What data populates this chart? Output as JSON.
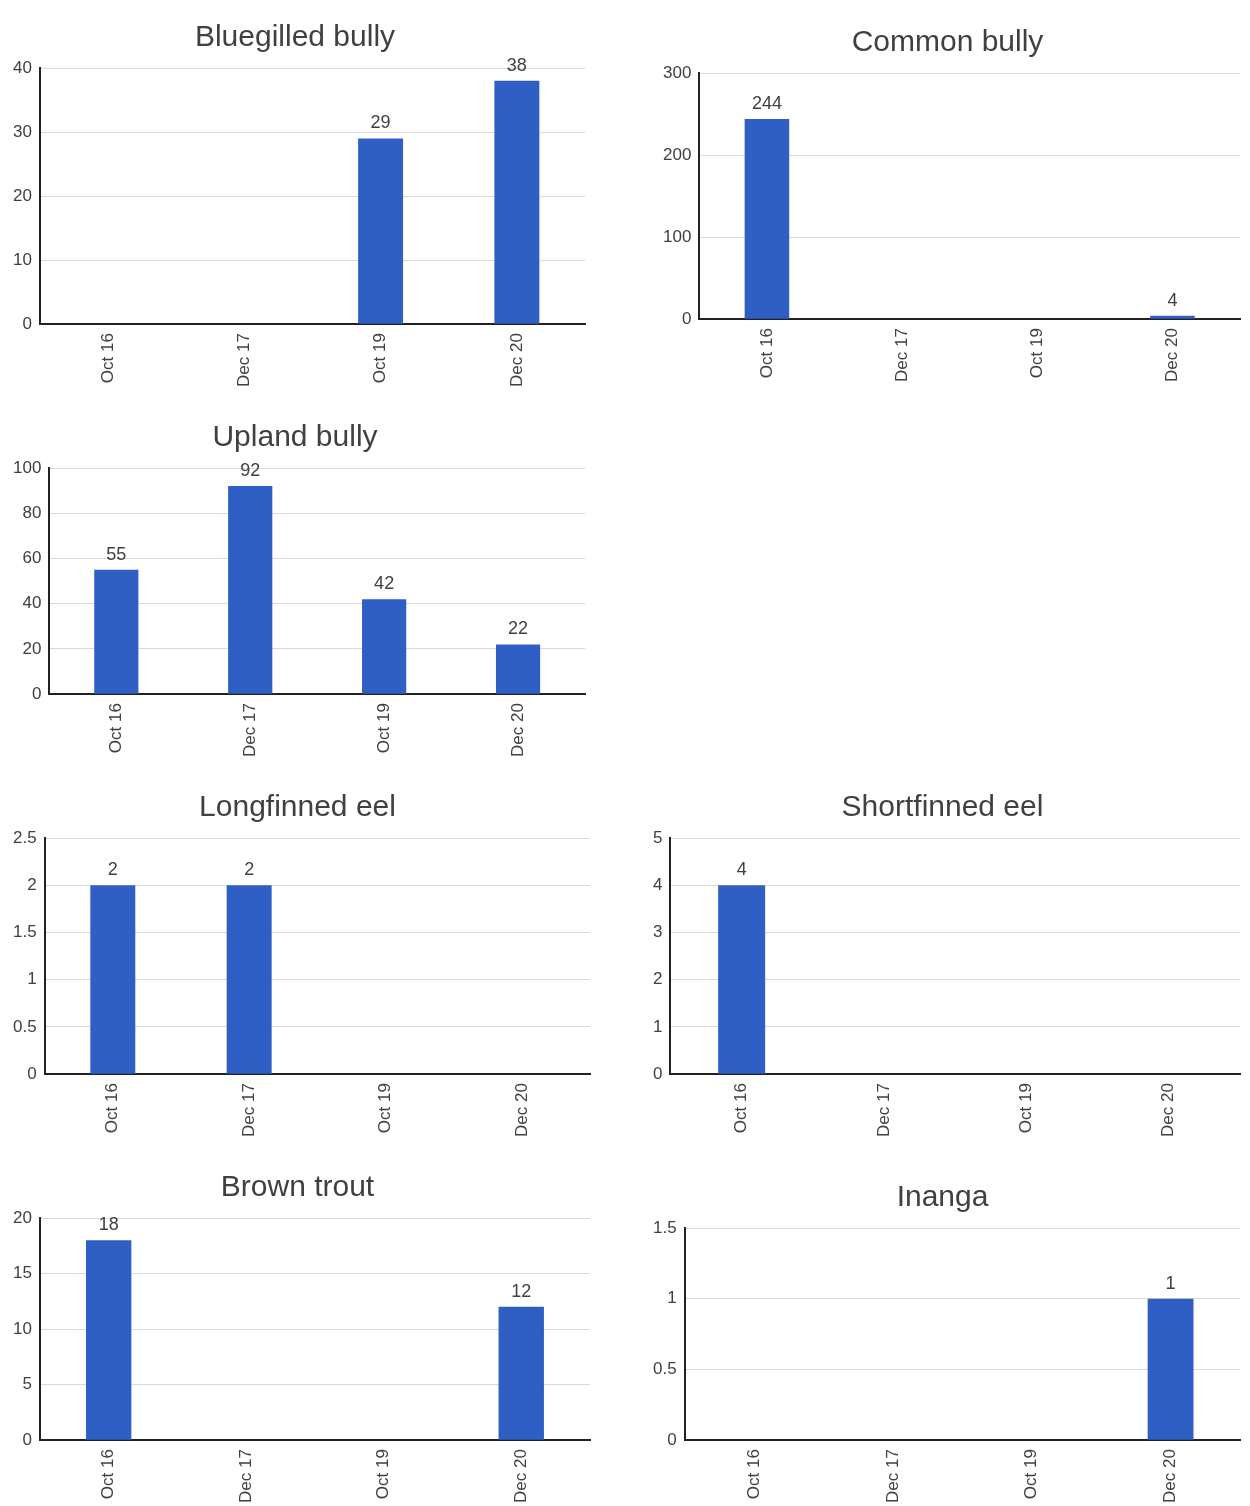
{
  "chart_data": [
    {
      "type": "bar",
      "title": "Bluegilled bully",
      "categories": [
        "Oct 16",
        "Dec 17",
        "Oct 19",
        "Dec 20"
      ],
      "values": [
        null,
        null,
        29,
        38
      ],
      "color": "#2f5fc4",
      "ylim": [
        0,
        40
      ],
      "yticks": [
        0,
        10,
        20,
        30,
        40
      ],
      "grid": "y",
      "data_labels": true,
      "legend": false
    },
    {
      "type": "bar",
      "title": "Common bully",
      "categories": [
        "Oct 16",
        "Dec 17",
        "Oct 19",
        "Dec 20"
      ],
      "values": [
        244,
        null,
        null,
        4
      ],
      "color": "#2f5fc4",
      "ylim": [
        0,
        300
      ],
      "yticks": [
        0,
        100,
        200,
        300
      ],
      "grid": "y",
      "data_labels": true,
      "legend": false
    },
    {
      "type": "bar",
      "title": "Upland bully",
      "categories": [
        "Oct 16",
        "Dec 17",
        "Oct 19",
        "Dec 20"
      ],
      "values": [
        55,
        92,
        42,
        22
      ],
      "color": "#2f5fc4",
      "ylim": [
        0,
        100
      ],
      "yticks": [
        0,
        20,
        40,
        60,
        80,
        100
      ],
      "grid": "y",
      "data_labels": true,
      "legend": false
    },
    {
      "type": "bar",
      "title": "Longfinned eel",
      "categories": [
        "Oct 16",
        "Dec 17",
        "Oct 19",
        "Dec 20"
      ],
      "values": [
        2,
        2,
        null,
        null
      ],
      "color": "#2f5fc4",
      "ylim": [
        0,
        2.5
      ],
      "yticks": [
        0,
        0.5,
        1,
        1.5,
        2,
        2.5
      ],
      "grid": "y",
      "data_labels": true,
      "legend": false
    },
    {
      "type": "bar",
      "title": "Shortfinned eel",
      "categories": [
        "Oct 16",
        "Dec 17",
        "Oct 19",
        "Dec 20"
      ],
      "values": [
        4,
        null,
        null,
        null
      ],
      "color": "#2f5fc4",
      "ylim": [
        0,
        5
      ],
      "yticks": [
        0,
        1,
        2,
        3,
        4,
        5
      ],
      "grid": "y",
      "data_labels": true,
      "legend": false
    },
    {
      "type": "bar",
      "title": "Brown trout",
      "categories": [
        "Oct 16",
        "Dec 17",
        "Oct 19",
        "Dec 20"
      ],
      "values": [
        18,
        null,
        null,
        12
      ],
      "color": "#2f5fc4",
      "ylim": [
        0,
        20
      ],
      "yticks": [
        0,
        5,
        10,
        15,
        20
      ],
      "grid": "y",
      "data_labels": true,
      "legend": false
    },
    {
      "type": "bar",
      "title": "Inanga",
      "categories": [
        "Oct 16",
        "Dec 17",
        "Oct 19",
        "Dec 20"
      ],
      "values": [
        null,
        null,
        null,
        1
      ],
      "color": "#2f5fc4",
      "ylim": [
        0,
        1.5
      ],
      "yticks": [
        0,
        0.5,
        1,
        1.5
      ],
      "grid": "y",
      "data_labels": true,
      "legend": false
    }
  ]
}
